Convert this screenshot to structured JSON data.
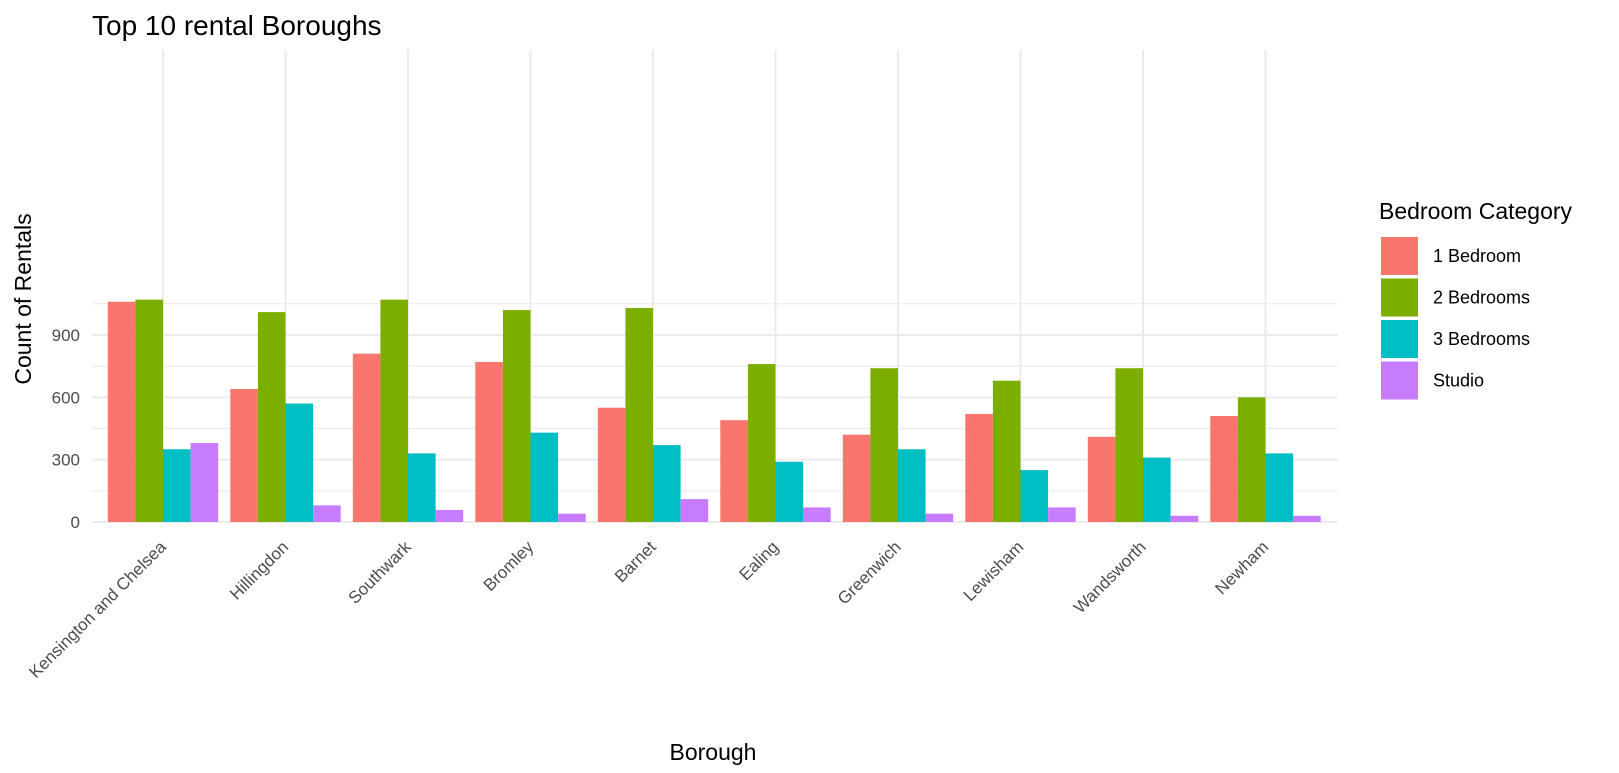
{
  "chart_data": {
    "type": "bar",
    "title": "Top 10 rental Boroughs",
    "xlabel": "Borough",
    "ylabel": "Count of Rentals",
    "ylim": [
      0,
      1100
    ],
    "yticks": [
      0,
      300,
      600,
      900
    ],
    "grid": true,
    "legend": {
      "title": "Bedroom Category",
      "position": "right"
    },
    "categories": [
      "Kensington and Chelsea",
      "Hillingdon",
      "Southwark",
      "Bromley",
      "Barnet",
      "Ealing",
      "Greenwich",
      "Lewisham",
      "Wandsworth",
      "Newham"
    ],
    "series": [
      {
        "name": "1 Bedroom",
        "color": "#F8766D",
        "values": [
          1060,
          640,
          810,
          770,
          550,
          490,
          420,
          520,
          410,
          510
        ]
      },
      {
        "name": "2 Bedrooms",
        "color": "#7CAE00",
        "values": [
          1070,
          1010,
          1070,
          1020,
          1030,
          760,
          740,
          680,
          740,
          600
        ]
      },
      {
        "name": "3 Bedrooms",
        "color": "#00BFC4",
        "values": [
          350,
          570,
          330,
          430,
          370,
          290,
          350,
          250,
          310,
          330
        ]
      },
      {
        "name": "Studio",
        "color": "#C77CFF",
        "values": [
          380,
          80,
          58,
          40,
          110,
          70,
          40,
          70,
          30,
          30
        ]
      }
    ]
  }
}
